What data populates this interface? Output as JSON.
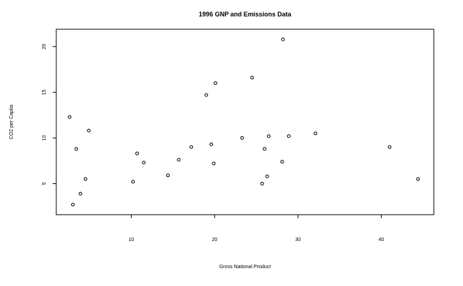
{
  "chart_data": {
    "type": "scatter",
    "title": "1996 GNP and Emissions Data",
    "xlabel": "Gross National Product",
    "ylabel": "CO2 per Capita",
    "xlim": [
      1.0,
      46.3
    ],
    "ylim": [
      1.6,
      21.9
    ],
    "xticks": [
      10,
      20,
      30,
      40
    ],
    "yticks": [
      5,
      10,
      15,
      20
    ],
    "grid": false,
    "legend": "none",
    "points": [
      {
        "x": 2.6,
        "y": 12.3
      },
      {
        "x": 3.0,
        "y": 2.7
      },
      {
        "x": 3.4,
        "y": 8.8
      },
      {
        "x": 3.9,
        "y": 3.9
      },
      {
        "x": 4.5,
        "y": 5.5
      },
      {
        "x": 4.9,
        "y": 10.8
      },
      {
        "x": 10.2,
        "y": 5.2
      },
      {
        "x": 10.7,
        "y": 8.3
      },
      {
        "x": 11.5,
        "y": 7.3
      },
      {
        "x": 14.4,
        "y": 5.9
      },
      {
        "x": 15.7,
        "y": 7.6
      },
      {
        "x": 17.2,
        "y": 9.0
      },
      {
        "x": 19.0,
        "y": 14.7
      },
      {
        "x": 19.6,
        "y": 9.3
      },
      {
        "x": 19.9,
        "y": 7.2
      },
      {
        "x": 20.1,
        "y": 16.0
      },
      {
        "x": 23.3,
        "y": 10.0
      },
      {
        "x": 24.5,
        "y": 16.6
      },
      {
        "x": 25.7,
        "y": 5.0
      },
      {
        "x": 26.0,
        "y": 8.8
      },
      {
        "x": 26.3,
        "y": 5.8
      },
      {
        "x": 26.5,
        "y": 10.2
      },
      {
        "x": 28.1,
        "y": 7.4
      },
      {
        "x": 28.2,
        "y": 20.8
      },
      {
        "x": 28.9,
        "y": 10.2
      },
      {
        "x": 32.1,
        "y": 10.5
      },
      {
        "x": 41.0,
        "y": 9.0
      },
      {
        "x": 44.4,
        "y": 5.5
      }
    ]
  }
}
